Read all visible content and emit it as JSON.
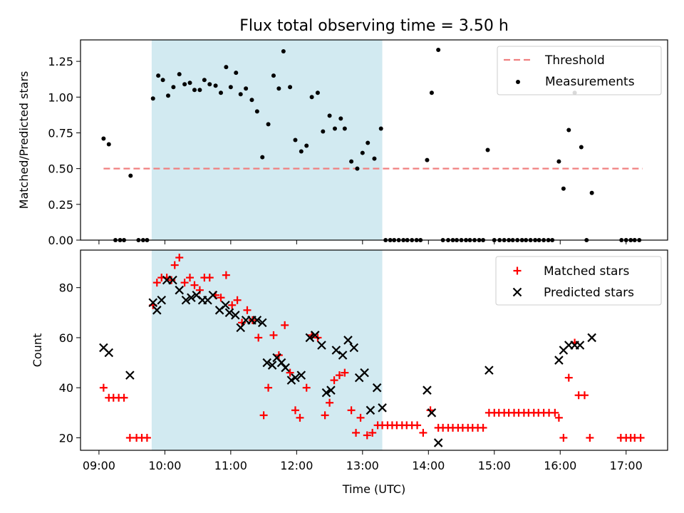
{
  "colors": {
    "threshold": "#f08080",
    "measurement": "#000000",
    "matched": "#ff0000",
    "predicted": "#000000",
    "span": "#add8e6"
  },
  "chart_data": [
    {
      "type": "scatter",
      "title": "Flux total observing time = 3.50 h",
      "xlabel": "",
      "ylabel": "Matched/Predicted stars",
      "ylim": [
        0,
        1.4
      ],
      "xlim": [
        8.72,
        17.63
      ],
      "yticks": [
        "0.00",
        "0.25",
        "0.50",
        "0.75",
        "1.00",
        "1.25"
      ],
      "span": {
        "start": 9.8,
        "end": 13.3
      },
      "legend": {
        "position": "top-right",
        "entries": [
          "Threshold",
          "Measurements"
        ]
      },
      "threshold": {
        "name": "Threshold",
        "value": 0.5,
        "x_start": 9.07,
        "x_end": 17.25
      },
      "series": [
        {
          "name": "Measurements",
          "points": [
            [
              9.07,
              0.71
            ],
            [
              9.15,
              0.67
            ],
            [
              9.25,
              0.0
            ],
            [
              9.32,
              0.0
            ],
            [
              9.38,
              0.0
            ],
            [
              9.48,
              0.45
            ],
            [
              9.6,
              0.0
            ],
            [
              9.67,
              0.0
            ],
            [
              9.73,
              0.0
            ],
            [
              9.82,
              0.99
            ],
            [
              9.9,
              1.15
            ],
            [
              9.97,
              1.12
            ],
            [
              10.05,
              1.01
            ],
            [
              10.13,
              1.07
            ],
            [
              10.22,
              1.16
            ],
            [
              10.3,
              1.09
            ],
            [
              10.38,
              1.1
            ],
            [
              10.45,
              1.05
            ],
            [
              10.53,
              1.05
            ],
            [
              10.6,
              1.12
            ],
            [
              10.68,
              1.09
            ],
            [
              10.77,
              1.08
            ],
            [
              10.85,
              1.03
            ],
            [
              10.93,
              1.21
            ],
            [
              11.0,
              1.07
            ],
            [
              11.08,
              1.17
            ],
            [
              11.15,
              1.02
            ],
            [
              11.23,
              1.06
            ],
            [
              11.32,
              0.98
            ],
            [
              11.4,
              0.9
            ],
            [
              11.48,
              0.58
            ],
            [
              11.57,
              0.81
            ],
            [
              11.65,
              1.15
            ],
            [
              11.73,
              1.06
            ],
            [
              11.8,
              1.32
            ],
            [
              11.9,
              1.07
            ],
            [
              11.98,
              0.7
            ],
            [
              12.07,
              0.62
            ],
            [
              12.15,
              0.66
            ],
            [
              12.23,
              1.0
            ],
            [
              12.32,
              1.03
            ],
            [
              12.4,
              0.76
            ],
            [
              12.5,
              0.87
            ],
            [
              12.58,
              0.78
            ],
            [
              12.67,
              0.85
            ],
            [
              12.73,
              0.78
            ],
            [
              12.83,
              0.55
            ],
            [
              12.92,
              0.5
            ],
            [
              13.0,
              0.61
            ],
            [
              13.08,
              0.68
            ],
            [
              13.18,
              0.57
            ],
            [
              13.28,
              0.78
            ],
            [
              13.35,
              0.0
            ],
            [
              13.42,
              0.0
            ],
            [
              13.48,
              0.0
            ],
            [
              13.55,
              0.0
            ],
            [
              13.62,
              0.0
            ],
            [
              13.68,
              0.0
            ],
            [
              13.75,
              0.0
            ],
            [
              13.82,
              0.0
            ],
            [
              13.88,
              0.0
            ],
            [
              13.98,
              0.56
            ],
            [
              14.05,
              1.03
            ],
            [
              14.15,
              1.33
            ],
            [
              14.22,
              0.0
            ],
            [
              14.3,
              0.0
            ],
            [
              14.37,
              0.0
            ],
            [
              14.43,
              0.0
            ],
            [
              14.5,
              0.0
            ],
            [
              14.57,
              0.0
            ],
            [
              14.63,
              0.0
            ],
            [
              14.7,
              0.0
            ],
            [
              14.77,
              0.0
            ],
            [
              14.83,
              0.0
            ],
            [
              14.9,
              0.63
            ],
            [
              15.0,
              0.0
            ],
            [
              15.08,
              0.0
            ],
            [
              15.15,
              0.0
            ],
            [
              15.22,
              0.0
            ],
            [
              15.28,
              0.0
            ],
            [
              15.35,
              0.0
            ],
            [
              15.42,
              0.0
            ],
            [
              15.48,
              0.0
            ],
            [
              15.55,
              0.0
            ],
            [
              15.62,
              0.0
            ],
            [
              15.68,
              0.0
            ],
            [
              15.75,
              0.0
            ],
            [
              15.82,
              0.0
            ],
            [
              15.88,
              0.0
            ],
            [
              15.98,
              0.55
            ],
            [
              16.05,
              0.36
            ],
            [
              16.13,
              0.77
            ],
            [
              16.22,
              1.03
            ],
            [
              16.32,
              0.65
            ],
            [
              16.4,
              0.0
            ],
            [
              16.48,
              0.33
            ],
            [
              16.93,
              0.0
            ],
            [
              17.0,
              0.0
            ],
            [
              17.07,
              0.0
            ],
            [
              17.13,
              0.0
            ],
            [
              17.2,
              0.0
            ]
          ]
        }
      ]
    },
    {
      "type": "scatter",
      "title": "",
      "xlabel": "Time (UTC)",
      "ylabel": "Count",
      "ylim": [
        15,
        95
      ],
      "xlim": [
        8.72,
        17.63
      ],
      "yticks": [
        "20",
        "40",
        "60",
        "80"
      ],
      "xticks": [
        "09:00",
        "10:00",
        "11:00",
        "12:00",
        "13:00",
        "14:00",
        "15:00",
        "16:00",
        "17:00"
      ],
      "span": {
        "start": 9.8,
        "end": 13.3
      },
      "legend": {
        "position": "top-right",
        "entries": [
          "Matched stars",
          "Predicted stars"
        ]
      },
      "series": [
        {
          "name": "Matched stars",
          "points": [
            [
              9.07,
              40
            ],
            [
              9.15,
              36
            ],
            [
              9.22,
              36
            ],
            [
              9.3,
              36
            ],
            [
              9.38,
              36
            ],
            [
              9.47,
              20
            ],
            [
              9.57,
              20
            ],
            [
              9.65,
              20
            ],
            [
              9.73,
              20
            ],
            [
              9.82,
              73
            ],
            [
              9.88,
              82
            ],
            [
              9.95,
              84
            ],
            [
              10.03,
              84
            ],
            [
              10.1,
              83
            ],
            [
              10.15,
              89
            ],
            [
              10.22,
              92
            ],
            [
              10.3,
              82
            ],
            [
              10.38,
              84
            ],
            [
              10.45,
              81
            ],
            [
              10.53,
              79
            ],
            [
              10.6,
              84
            ],
            [
              10.68,
              84
            ],
            [
              10.77,
              77
            ],
            [
              10.85,
              76
            ],
            [
              10.93,
              85
            ],
            [
              11.02,
              73
            ],
            [
              11.1,
              75
            ],
            [
              11.17,
              66
            ],
            [
              11.25,
              71
            ],
            [
              11.33,
              67
            ],
            [
              11.42,
              60
            ],
            [
              11.5,
              29
            ],
            [
              11.57,
              40
            ],
            [
              11.65,
              61
            ],
            [
              11.73,
              53
            ],
            [
              11.82,
              65
            ],
            [
              11.9,
              46
            ],
            [
              11.98,
              31
            ],
            [
              12.05,
              28
            ],
            [
              12.15,
              40
            ],
            [
              12.23,
              61
            ],
            [
              12.32,
              60
            ],
            [
              12.43,
              29
            ],
            [
              12.5,
              34
            ],
            [
              12.57,
              43
            ],
            [
              12.65,
              45
            ],
            [
              12.73,
              46
            ],
            [
              12.83,
              31
            ],
            [
              12.9,
              22
            ],
            [
              12.97,
              28
            ],
            [
              13.07,
              21
            ],
            [
              13.15,
              22
            ],
            [
              13.23,
              25
            ],
            [
              13.3,
              25
            ],
            [
              13.38,
              25
            ],
            [
              13.45,
              25
            ],
            [
              13.52,
              25
            ],
            [
              13.6,
              25
            ],
            [
              13.67,
              25
            ],
            [
              13.75,
              25
            ],
            [
              13.83,
              25
            ],
            [
              13.92,
              22
            ],
            [
              14.03,
              31
            ],
            [
              14.15,
              24
            ],
            [
              14.22,
              24
            ],
            [
              14.3,
              24
            ],
            [
              14.37,
              24
            ],
            [
              14.45,
              24
            ],
            [
              14.52,
              24
            ],
            [
              14.6,
              24
            ],
            [
              14.67,
              24
            ],
            [
              14.75,
              24
            ],
            [
              14.83,
              24
            ],
            [
              14.92,
              30
            ],
            [
              15.0,
              30
            ],
            [
              15.07,
              30
            ],
            [
              15.15,
              30
            ],
            [
              15.22,
              30
            ],
            [
              15.3,
              30
            ],
            [
              15.37,
              30
            ],
            [
              15.45,
              30
            ],
            [
              15.52,
              30
            ],
            [
              15.6,
              30
            ],
            [
              15.67,
              30
            ],
            [
              15.75,
              30
            ],
            [
              15.83,
              30
            ],
            [
              15.92,
              30
            ],
            [
              15.98,
              28
            ],
            [
              16.05,
              20
            ],
            [
              16.13,
              44
            ],
            [
              16.22,
              58
            ],
            [
              16.28,
              37
            ],
            [
              16.37,
              37
            ],
            [
              16.45,
              20
            ],
            [
              16.92,
              20
            ],
            [
              17.0,
              20
            ],
            [
              17.07,
              20
            ],
            [
              17.13,
              20
            ],
            [
              17.22,
              20
            ]
          ]
        },
        {
          "name": "Predicted stars",
          "points": [
            [
              9.07,
              56
            ],
            [
              9.15,
              54
            ],
            [
              9.47,
              45
            ],
            [
              9.82,
              74
            ],
            [
              9.88,
              71
            ],
            [
              9.95,
              75
            ],
            [
              10.03,
              83
            ],
            [
              10.12,
              83
            ],
            [
              10.22,
              79
            ],
            [
              10.32,
              75
            ],
            [
              10.4,
              76
            ],
            [
              10.48,
              77
            ],
            [
              10.57,
              75
            ],
            [
              10.65,
              75
            ],
            [
              10.73,
              77
            ],
            [
              10.83,
              71
            ],
            [
              10.92,
              73
            ],
            [
              10.98,
              70
            ],
            [
              11.07,
              69
            ],
            [
              11.15,
              64
            ],
            [
              11.23,
              67
            ],
            [
              11.32,
              67
            ],
            [
              11.4,
              67
            ],
            [
              11.48,
              66
            ],
            [
              11.55,
              50
            ],
            [
              11.63,
              49
            ],
            [
              11.7,
              52
            ],
            [
              11.77,
              50
            ],
            [
              11.83,
              48
            ],
            [
              11.92,
              43
            ],
            [
              11.98,
              44
            ],
            [
              12.07,
              45
            ],
            [
              12.2,
              60
            ],
            [
              12.28,
              61
            ],
            [
              12.38,
              57
            ],
            [
              12.45,
              38
            ],
            [
              12.52,
              39
            ],
            [
              12.6,
              55
            ],
            [
              12.7,
              53
            ],
            [
              12.78,
              59
            ],
            [
              12.87,
              56
            ],
            [
              12.95,
              44
            ],
            [
              13.03,
              46
            ],
            [
              13.12,
              31
            ],
            [
              13.22,
              40
            ],
            [
              13.3,
              32
            ],
            [
              13.98,
              39
            ],
            [
              14.05,
              30
            ],
            [
              14.15,
              18
            ],
            [
              14.92,
              47
            ],
            [
              15.98,
              51
            ],
            [
              16.05,
              55
            ],
            [
              16.13,
              57
            ],
            [
              16.22,
              57
            ],
            [
              16.3,
              57
            ],
            [
              16.48,
              60
            ]
          ]
        }
      ]
    }
  ]
}
